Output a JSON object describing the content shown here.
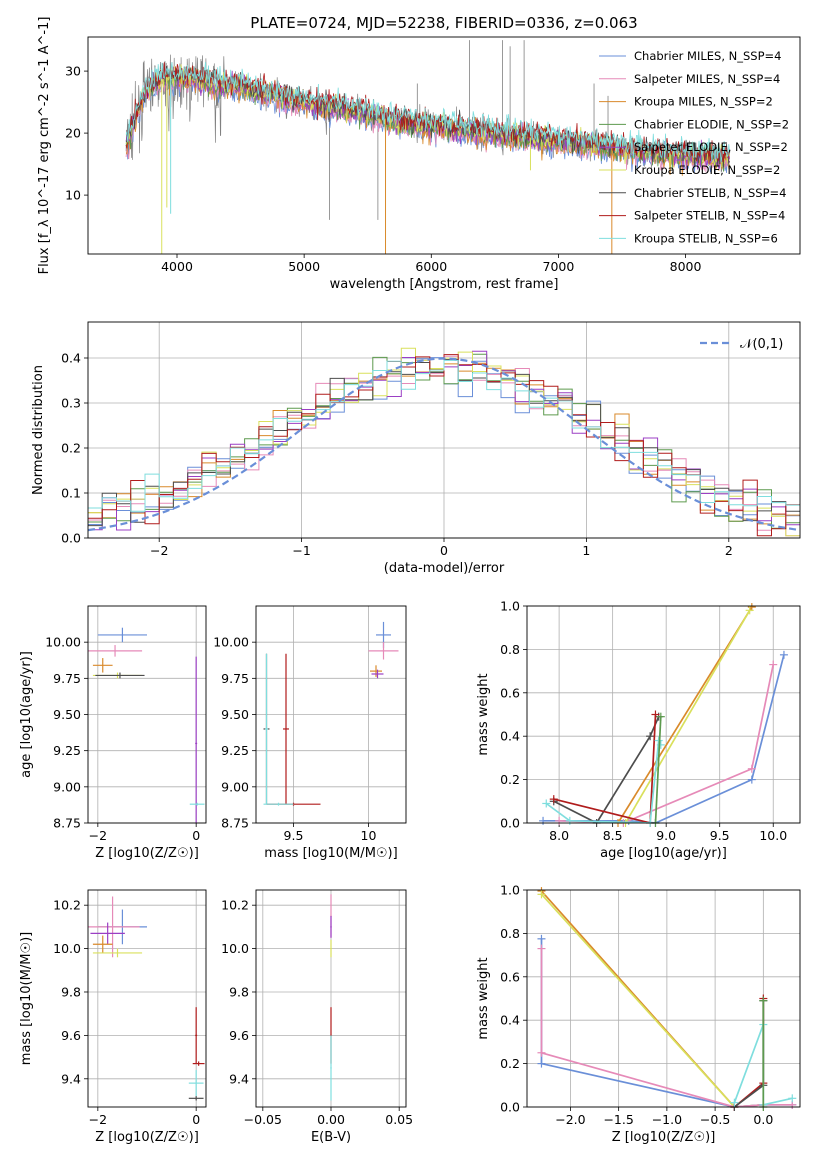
{
  "chart_data": [
    {
      "type": "line",
      "title": "PLATE=0724, MJD=52238, FIBERID=0336, z=0.063",
      "xlabel": "wavelength [Angstrom, rest frame]",
      "ylabel": "Flux [f_λ 10^-17 erg cm^-2 s^-1 A^-1]",
      "xlim": [
        3300,
        8900
      ],
      "ylim": [
        0.5,
        35.5
      ],
      "xticks": [
        4000,
        5000,
        6000,
        7000,
        8000
      ],
      "yticks": [
        10,
        20,
        30
      ],
      "grid": false,
      "legend_placement": "top-right",
      "series": [
        {
          "name": "Chabrier MILES, N_SSP=4",
          "color": "#6a8fd8"
        },
        {
          "name": "Salpeter MILES, N_SSP=4",
          "color": "#e68ab8"
        },
        {
          "name": "Kroupa MILES, N_SSP=2",
          "color": "#d98a2b"
        },
        {
          "name": "Chabrier ELODIE, N_SSP=2",
          "color": "#5d9a4e"
        },
        {
          "name": "Salpeter ELODIE, N_SSP=2",
          "color": "#9b3fc4"
        },
        {
          "name": "Kroupa ELODIE, N_SSP=2",
          "color": "#d9e05c"
        },
        {
          "name": "Chabrier STELIB, N_SSP=4",
          "color": "#4d4d4d"
        },
        {
          "name": "Salpeter STELIB, N_SSP=4",
          "color": "#b01c1c"
        },
        {
          "name": "Kroupa STELIB, N_SSP=6",
          "color": "#7fdede"
        }
      ],
      "data_color": "#808080",
      "continuum": {
        "x": [
          3600,
          3750,
          3900,
          4100,
          4300,
          4500,
          4700,
          4900,
          5100,
          5300,
          5500,
          5700,
          5900,
          6100,
          6300,
          6500,
          6700,
          6900,
          7100,
          7300,
          7500,
          7700,
          7900,
          8100,
          8300
        ],
        "y": [
          18,
          27,
          29,
          29,
          28,
          27.5,
          26.5,
          25.5,
          24.5,
          24,
          23,
          22,
          21.5,
          21,
          20.5,
          20,
          19.5,
          19,
          18.5,
          18,
          17.5,
          17,
          16.5,
          16.5,
          16
        ]
      }
    },
    {
      "type": "bar",
      "xlabel": "(data-model)/error",
      "ylabel": "Normed distribution",
      "xlim": [
        -2.5,
        2.5
      ],
      "ylim": [
        0,
        0.48
      ],
      "xticks": [
        -2,
        -1,
        0,
        1,
        2
      ],
      "yticks": [
        0.0,
        0.1,
        0.2,
        0.3,
        0.4
      ],
      "grid": true,
      "legend_placement": "top-right",
      "legend": [
        "𝒩(0,1)"
      ],
      "gaussian_color": "#6a8fd8"
    },
    {
      "type": "scatter",
      "xlabel": "Z [log10(Z/Z☉)]",
      "ylabel": "age [log10(age/yr)]",
      "xlim": [
        -2.2,
        0.2
      ],
      "ylim": [
        8.75,
        10.25
      ],
      "xticks": [
        -2,
        0
      ],
      "yticks": [
        8.75,
        9.0,
        9.25,
        9.5,
        9.75,
        10.0
      ],
      "grid": true,
      "crosses": [
        {
          "x": -1.5,
          "y": 10.05,
          "xe": 0.5,
          "ye": 0.05,
          "color": "#6a8fd8"
        },
        {
          "x": -1.65,
          "y": 9.94,
          "xe": 0.55,
          "ye": 0.04,
          "color": "#e68ab8"
        },
        {
          "x": -1.9,
          "y": 9.84,
          "xe": 0.2,
          "ye": 0.05,
          "color": "#d98a2b"
        },
        {
          "x": -1.6,
          "y": 9.77,
          "xe": 0.5,
          "ye": 0.02,
          "color": "#d9e05c"
        },
        {
          "x": -1.55,
          "y": 9.77,
          "xe": 0.5,
          "ye": 0.02,
          "color": "#4d4d4d"
        },
        {
          "x": 0.0,
          "y": 9.3,
          "xe": 0.02,
          "ye": 0.6,
          "color": "#9b3fc4"
        },
        {
          "x": 0.02,
          "y": 8.88,
          "xe": 0.15,
          "ye": 0.01,
          "color": "#7fdede"
        }
      ]
    },
    {
      "type": "scatter",
      "xlabel": "mass [log10(M/M☉)]",
      "ylabel": "",
      "xlim": [
        9.25,
        10.25
      ],
      "ylim": [
        8.75,
        10.25
      ],
      "xticks": [
        9.5,
        10.0
      ],
      "yticks": [
        8.75,
        9.0,
        9.25,
        9.5,
        9.75,
        10.0
      ],
      "grid": true,
      "crosses": [
        {
          "x": 10.1,
          "y": 10.05,
          "xe": 0.05,
          "ye": 0.09,
          "color": "#6a8fd8"
        },
        {
          "x": 10.1,
          "y": 9.94,
          "xe": 0.1,
          "ye": 0.06,
          "color": "#e68ab8"
        },
        {
          "x": 10.05,
          "y": 9.8,
          "xe": 0.04,
          "ye": 0.04,
          "color": "#d98a2b"
        },
        {
          "x": 10.06,
          "y": 9.78,
          "xe": 0.04,
          "ye": 0.03,
          "color": "#9b3fc4"
        },
        {
          "x": 9.45,
          "y": 9.4,
          "xe": 0.02,
          "ye": 0.52,
          "color": "#b01c1c"
        },
        {
          "x": 9.32,
          "y": 9.4,
          "xe": 0.02,
          "ye": 0.52,
          "color": "#4d4d4d"
        },
        {
          "x": 9.5,
          "y": 8.88,
          "xe": 0.18,
          "ye": 0.01,
          "color": "#b01c1c"
        },
        {
          "x": 9.32,
          "y": 9.4,
          "xe": 0.01,
          "ye": 0.52,
          "color": "#7fdede"
        },
        {
          "x": 9.4,
          "y": 8.88,
          "xe": 0.1,
          "ye": 0.01,
          "color": "#7fdede"
        }
      ]
    },
    {
      "type": "line",
      "xlabel": "age  [log10(age/yr)]",
      "ylabel": "mass weight",
      "xlim": [
        7.7,
        10.25
      ],
      "ylim": [
        0,
        1.0
      ],
      "xticks": [
        8.0,
        8.5,
        9.0,
        9.5,
        10.0
      ],
      "yticks": [
        0.0,
        0.2,
        0.4,
        0.6,
        0.8,
        1.0
      ],
      "grid": true,
      "series": [
        {
          "color": "#6a8fd8",
          "x": [
            7.85,
            8.65,
            8.9,
            9.8,
            10.1
          ],
          "y": [
            0.01,
            0.01,
            0.0,
            0.2,
            0.775
          ]
        },
        {
          "color": "#e68ab8",
          "x": [
            8.0,
            8.6,
            9.8,
            10.0
          ],
          "y": [
            0.01,
            0.0,
            0.25,
            0.73
          ]
        },
        {
          "color": "#d98a2b",
          "x": [
            8.55,
            9.8
          ],
          "y": [
            0.0,
            0.995
          ]
        },
        {
          "color": "#d9e05c",
          "x": [
            8.62,
            9.78
          ],
          "y": [
            0.0,
            0.98
          ]
        },
        {
          "color": "#4d4d4d",
          "x": [
            7.95,
            8.35,
            8.85,
            8.93
          ],
          "y": [
            0.1,
            0.0,
            0.4,
            0.49
          ]
        },
        {
          "color": "#b01c1c",
          "x": [
            7.95,
            8.85,
            8.9
          ],
          "y": [
            0.11,
            0.0,
            0.5
          ]
        },
        {
          "color": "#7fdede",
          "x": [
            7.88,
            8.1,
            8.85,
            8.93,
            8.95
          ],
          "y": [
            0.09,
            0.01,
            0.0,
            0.38,
            0.36
          ]
        },
        {
          "color": "#5d9a4e",
          "x": [
            8.9,
            8.95
          ],
          "y": [
            0.0,
            0.49
          ]
        }
      ]
    },
    {
      "type": "scatter",
      "xlabel": "Z [log10(Z/Z☉)]",
      "ylabel": "mass [log10(M/M☉)]",
      "xlim": [
        -2.2,
        0.2
      ],
      "ylim": [
        9.27,
        10.27
      ],
      "xticks": [
        -2,
        0
      ],
      "yticks": [
        9.4,
        9.6,
        9.8,
        10.0,
        10.2
      ],
      "grid": true,
      "crosses": [
        {
          "x": -1.5,
          "y": 10.1,
          "xe": 0.5,
          "ye": 0.08,
          "color": "#6a8fd8"
        },
        {
          "x": -1.7,
          "y": 10.1,
          "xe": 0.55,
          "ye": 0.14,
          "color": "#e68ab8"
        },
        {
          "x": -1.8,
          "y": 10.07,
          "xe": 0.35,
          "ye": 0.05,
          "color": "#9b3fc4"
        },
        {
          "x": -1.9,
          "y": 10.02,
          "xe": 0.2,
          "ye": 0.04,
          "color": "#d98a2b"
        },
        {
          "x": -1.6,
          "y": 9.98,
          "xe": 0.5,
          "ye": 0.02,
          "color": "#d9e05c"
        },
        {
          "x": 0.0,
          "y": 9.6,
          "xe": 0.02,
          "ye": 0.13,
          "color": "#b01c1c"
        },
        {
          "x": 0.05,
          "y": 9.47,
          "xe": 0.12,
          "ye": 0.01,
          "color": "#b01c1c"
        },
        {
          "x": 0.0,
          "y": 9.38,
          "xe": 0.15,
          "ye": 0.06,
          "color": "#7fdede"
        },
        {
          "x": 0.0,
          "y": 9.31,
          "xe": 0.15,
          "ye": 0.01,
          "color": "#4d4d4d"
        }
      ]
    },
    {
      "type": "scatter",
      "xlabel": "E(B-V)",
      "ylabel": "",
      "xlim": [
        -0.055,
        0.055
      ],
      "ylim": [
        9.27,
        10.27
      ],
      "xticks": [
        -0.05,
        0.0,
        0.05
      ],
      "yticks": [
        9.4,
        9.6,
        9.8,
        10.0,
        10.2
      ],
      "grid": true,
      "crosses": [
        {
          "x": 0.0,
          "y": 10.15,
          "xe": 0.0005,
          "ye": 0.1,
          "color": "#e68ab8"
        },
        {
          "x": 0.0,
          "y": 10.1,
          "xe": 0.0005,
          "ye": 0.05,
          "color": "#9b3fc4"
        },
        {
          "x": 0.0,
          "y": 10.0,
          "xe": 0.0005,
          "ye": 0.04,
          "color": "#d9e05c"
        },
        {
          "x": 0.0,
          "y": 9.6,
          "xe": 0.0005,
          "ye": 0.13,
          "color": "#b01c1c"
        },
        {
          "x": 0.0,
          "y": 9.45,
          "xe": 0.0005,
          "ye": 0.15,
          "color": "#7fdede"
        }
      ]
    },
    {
      "type": "line",
      "xlabel": "Z [log10(Z/Z☉)]",
      "ylabel": "mass weight",
      "xlim": [
        -2.45,
        0.38
      ],
      "ylim": [
        0,
        1.0
      ],
      "xticks": [
        -2.0,
        -1.5,
        -1.0,
        -0.5,
        0.0
      ],
      "yticks": [
        0.0,
        0.2,
        0.4,
        0.6,
        0.8,
        1.0
      ],
      "grid": true,
      "series": [
        {
          "color": "#d98a2b",
          "x": [
            -2.3,
            -0.3,
            0.0
          ],
          "y": [
            0.995,
            0.0,
            0.01
          ]
        },
        {
          "color": "#d9e05c",
          "x": [
            -2.3,
            -0.3,
            0.0
          ],
          "y": [
            0.98,
            0.0,
            0.01
          ]
        },
        {
          "color": "#6a8fd8",
          "x": [
            -2.3,
            -2.3,
            -0.3,
            0.0,
            0.3
          ],
          "y": [
            0.775,
            0.2,
            0.0,
            0.01,
            0.01
          ]
        },
        {
          "color": "#e68ab8",
          "x": [
            -2.3,
            -2.3,
            -0.3,
            0.0,
            0.3
          ],
          "y": [
            0.73,
            0.25,
            0.0,
            0.01,
            0.01
          ]
        },
        {
          "color": "#b01c1c",
          "x": [
            -0.3,
            0.0,
            0.0
          ],
          "y": [
            0.0,
            0.11,
            0.5
          ]
        },
        {
          "color": "#4d4d4d",
          "x": [
            -0.3,
            0.0,
            0.0
          ],
          "y": [
            0.0,
            0.1,
            0.49
          ]
        },
        {
          "color": "#7fdede",
          "x": [
            -0.3,
            0.0,
            0.0,
            0.3
          ],
          "y": [
            0.02,
            0.38,
            0.01,
            0.04
          ]
        },
        {
          "color": "#5d9a4e",
          "x": [
            0.0,
            0.0
          ],
          "y": [
            0.0,
            0.49
          ]
        }
      ]
    }
  ]
}
